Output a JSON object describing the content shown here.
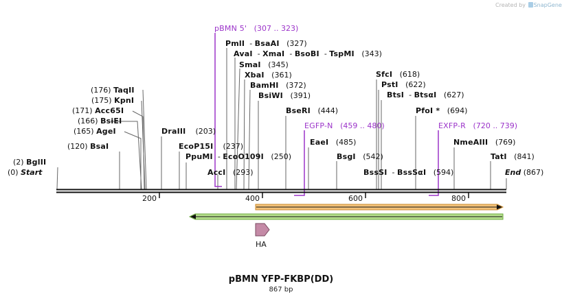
{
  "credit": {
    "prefix": "Created by",
    "brand": "SnapGene"
  },
  "map": {
    "title": "pBMN YFP-FKBP(DD)",
    "length_label": "867 bp",
    "start_label": "Start",
    "start_pos": "(0)",
    "end_label": "End",
    "end_pos": "(867)",
    "ticks": [
      "200",
      "400",
      "600",
      "800"
    ],
    "enzymes": [
      {
        "id": "bglii",
        "name": "BglII",
        "pos": "(2)"
      },
      {
        "id": "bsai",
        "name": "BsaI",
        "pos": "(120)"
      },
      {
        "id": "agei",
        "name": "AgeI",
        "pos": "(165)"
      },
      {
        "id": "bsiei",
        "name": "BsiEI",
        "pos": "(166)"
      },
      {
        "id": "acc65i",
        "name": "Acc65I",
        "pos": "(171)"
      },
      {
        "id": "kpni",
        "name": "KpnI",
        "pos": "(175)"
      },
      {
        "id": "taqii",
        "name": "TaqII",
        "pos": "(176)"
      },
      {
        "id": "draiii",
        "name": "DraIII",
        "pos": "(203)"
      },
      {
        "id": "ecop15i",
        "name": "EcoP15I",
        "pos": "(237)"
      },
      {
        "id": "ppumi",
        "name": "PpuMI",
        "sep": "-",
        "name2": "EcoO109I",
        "pos": "(250)"
      },
      {
        "id": "acci",
        "name": "AccI",
        "pos": "(293)"
      },
      {
        "id": "pmli",
        "name": "PmlI",
        "sep": "-",
        "name2": "BsaAI",
        "pos": "(327)"
      },
      {
        "id": "avai",
        "name": "AvaI",
        "sep": "-",
        "name2": "XmaI",
        "sep2": "-",
        "name3": "BsoBI",
        "sep3": "-",
        "name4": "TspMI",
        "pos": "(343)"
      },
      {
        "id": "smai",
        "name": "SmaI",
        "pos": "(345)"
      },
      {
        "id": "xbai",
        "name": "XbaI",
        "pos": "(361)"
      },
      {
        "id": "bamhi",
        "name": "BamHI",
        "pos": "(372)"
      },
      {
        "id": "bsiwi",
        "name": "BsiWI",
        "pos": "(391)"
      },
      {
        "id": "bseri",
        "name": "BseRI",
        "pos": "(444)"
      },
      {
        "id": "eaei",
        "name": "EaeI",
        "pos": "(485)"
      },
      {
        "id": "bsgi",
        "name": "BsgI",
        "pos": "(542)"
      },
      {
        "id": "bsssi",
        "name": "BssSI",
        "sep": "-",
        "name2": "BssSαI",
        "pos": "(594)"
      },
      {
        "id": "sfci",
        "name": "SfcI",
        "pos": "(618)"
      },
      {
        "id": "psti",
        "name": "PstI",
        "pos": "(622)"
      },
      {
        "id": "btsi",
        "name": "BtsI",
        "sep": "-",
        "name2": "BtsαI",
        "pos": "(627)"
      },
      {
        "id": "pfoi",
        "name": "PfoI *",
        "pos": "(694)"
      },
      {
        "id": "nmeaiii",
        "name": "NmeAIII",
        "pos": "(769)"
      },
      {
        "id": "tati",
        "name": "TatI",
        "pos": "(841)"
      }
    ],
    "primers": [
      {
        "id": "pbmn5",
        "name": "pBMN 5'",
        "range": "(307 .. 323)"
      },
      {
        "id": "egfpn",
        "name": "EGFP-N",
        "range": "(459 .. 480)"
      },
      {
        "id": "exfpr",
        "name": "EXFP-R",
        "range": "(720 .. 739)"
      }
    ],
    "features": [
      {
        "id": "ha",
        "name": "HA"
      }
    ],
    "colors": {
      "primer": "#9b33c9",
      "orange_arrow": "#f3c27a",
      "green_arrow": "#b7df8e",
      "ha": "#c48aa6",
      "backbone": "#111111"
    }
  }
}
